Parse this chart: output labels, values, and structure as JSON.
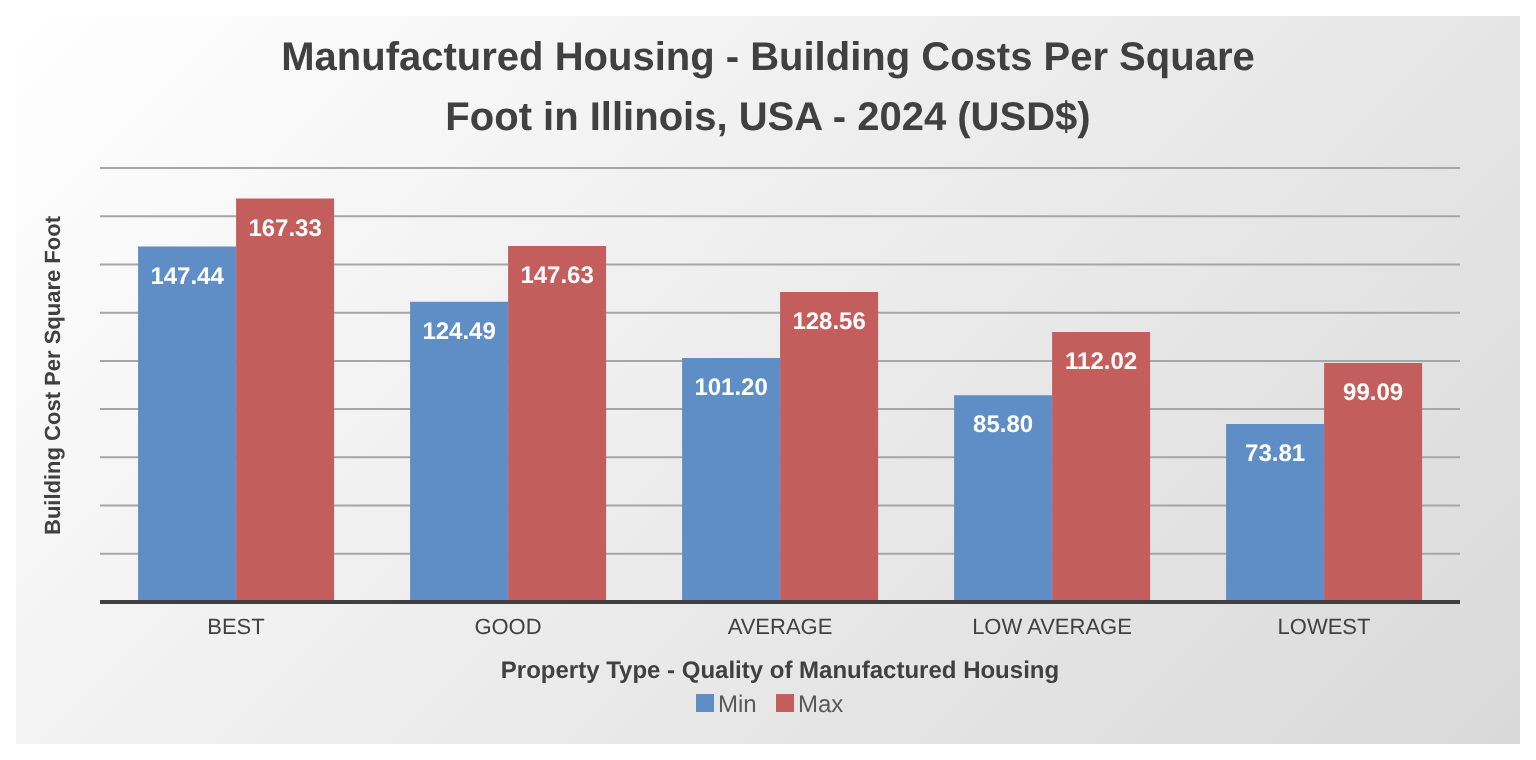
{
  "chart_data": {
    "type": "bar",
    "title": "Manufactured Housing - Building Costs Per Square Foot in Illinois, USA - 2024 (USD$)",
    "xlabel": "Property Type - Quality of Manufactured Housing",
    "ylabel": "Building Cost Per Square Foot",
    "categories": [
      "BEST",
      "GOOD",
      "AVERAGE",
      "LOW AVERAGE",
      "LOWEST"
    ],
    "series": [
      {
        "name": "Min",
        "color": "#5f8ec6",
        "values": [
          147.44,
          124.49,
          101.2,
          85.8,
          73.81
        ],
        "value_labels": [
          "147.44",
          "124.49",
          "101.20",
          "85.80",
          "73.81"
        ]
      },
      {
        "name": "Max",
        "color": "#c45e5d",
        "values": [
          167.33,
          147.63,
          128.56,
          112.02,
          99.09
        ],
        "value_labels": [
          "167.33",
          "147.63",
          "128.56",
          "112.02",
          "99.09"
        ]
      }
    ],
    "ylim": [
      0,
      180
    ],
    "yticks": [
      {
        "value": 0,
        "label": null
      },
      {
        "value": 20,
        "label": null
      },
      {
        "value": 40,
        "label": null
      },
      {
        "value": 60,
        "label": null
      },
      {
        "value": 80,
        "label": null
      },
      {
        "value": 100,
        "label": null
      },
      {
        "value": 120,
        "label": null
      },
      {
        "value": 140,
        "label": null
      },
      {
        "value": 160,
        "label": null
      },
      {
        "value": 180,
        "label": null
      }
    ],
    "tick_labels": "x",
    "grid": "y",
    "legend": "bottom"
  }
}
